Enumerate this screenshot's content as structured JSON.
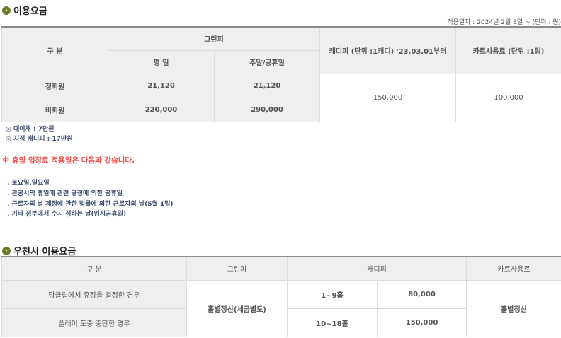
{
  "section1": {
    "title": "이용요금",
    "effective_date": "적용일자 : 2024년 2월 3일 ~ (단위 : 원)",
    "headers": {
      "category": "구 분",
      "green_fee": "그린피",
      "weekday": "평 일",
      "weekend": "주말/공휴일",
      "caddie": "캐디피 (단위 :1캐디) '23.03.01부터",
      "cart": "카트사용료 (단위 :1팀)"
    },
    "rows": [
      {
        "label": "정회원",
        "weekday": "21,120",
        "weekend": "21,120"
      },
      {
        "label": "비회원",
        "weekday": "220,000",
        "weekend": "290,000"
      }
    ],
    "caddie_fee": "150,000",
    "cart_fee": "100,000",
    "notes": [
      "◎ 대여채 : 7만원",
      "◎ 지정 캐디피 : 17만원"
    ]
  },
  "holiday": {
    "notice": "※ 휴일 입장료 적용일은 다음과 같습니다.",
    "items": [
      ". 토요일,일요일",
      ". 관공서의 휴일에 관련 규정에 의한 공휴일",
      ". 근로자의 날 제정에 관한 법률에 의한 근로자의 날(5월 1일)",
      ". 기타 정부에서 수시 정하는 날(임시공휴일)"
    ]
  },
  "section2": {
    "title": "우천시 이용요금",
    "headers": {
      "category": "구 분",
      "green_fee": "그린피",
      "caddie": "캐디피",
      "cart": "카트사용료"
    },
    "rows": [
      {
        "label": "당클럽에서 휴장을 결정한 경우",
        "holes": "1~9홀",
        "caddie": "80,000"
      },
      {
        "label": "플레이 도중 중단한 경우",
        "holes": "10~18홀",
        "caddie": "150,000"
      }
    ],
    "green_fee": "홀별정산(세금별도)",
    "cart": "홀별정산"
  }
}
